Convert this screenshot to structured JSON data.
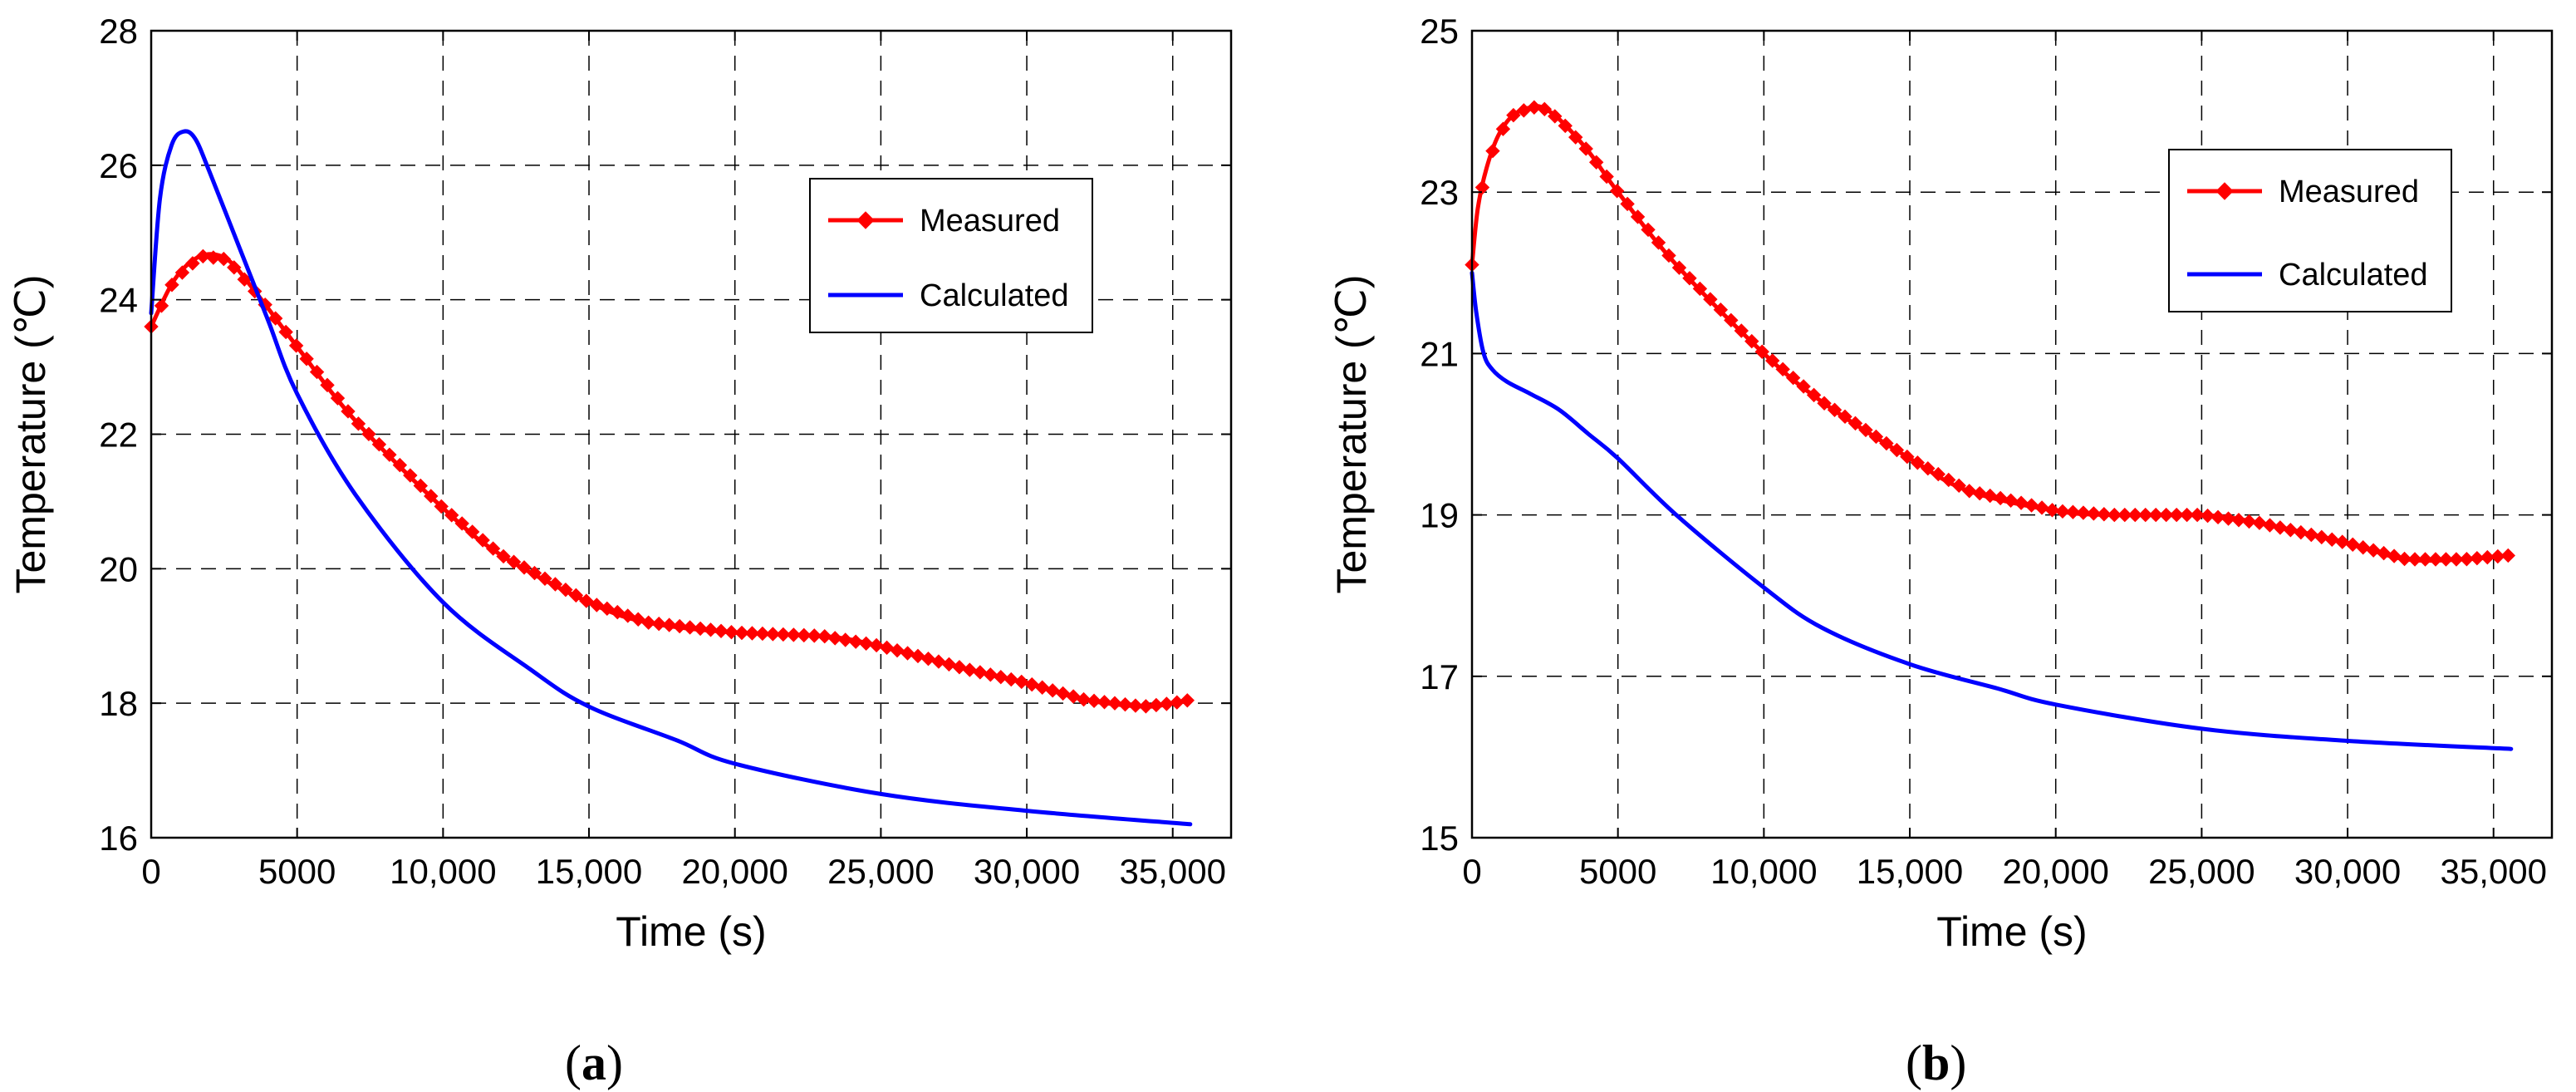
{
  "figure": {
    "captions": [
      {
        "open": "(",
        "letter": "a",
        "close": ")"
      },
      {
        "open": "(",
        "letter": "b",
        "close": ")"
      }
    ]
  },
  "colors": {
    "measured": "#ff0000",
    "calculated": "#0000ff",
    "grid": "#000000",
    "axis": "#000000",
    "background": "#ffffff"
  },
  "chart_data": [
    {
      "id": "a",
      "type": "line",
      "title": "",
      "xlabel": "Time (s)",
      "ylabel": "Temperature (℃)",
      "xlim": [
        0,
        37000
      ],
      "ylim": [
        16,
        28
      ],
      "xticks": [
        0,
        5000,
        10000,
        15000,
        20000,
        25000,
        30000,
        35000
      ],
      "xtick_labels": [
        "0",
        "5000",
        "10,000",
        "15,000",
        "20,000",
        "25,000",
        "30,000",
        "35,000"
      ],
      "yticks": [
        16,
        18,
        20,
        22,
        24,
        26,
        28
      ],
      "ytick_labels": [
        "16",
        "18",
        "20",
        "22",
        "24",
        "26",
        "28"
      ],
      "grid": true,
      "legend_position": "top-right",
      "series": [
        {
          "name": "Measured",
          "color": "#ff0000",
          "marker": "diamond",
          "x": [
            0,
            800,
            1700,
            2600,
            3600,
            5000,
            7000,
            10000,
            12000,
            15000,
            17000,
            20000,
            23000,
            25000,
            28000,
            30000,
            32000,
            34000,
            35000,
            35600
          ],
          "y": [
            23.6,
            24.3,
            24.65,
            24.6,
            24.1,
            23.3,
            22.2,
            20.9,
            20.2,
            19.5,
            19.2,
            19.05,
            19.0,
            18.85,
            18.5,
            18.3,
            18.05,
            17.95,
            18.0,
            18.05
          ]
        },
        {
          "name": "Calculated",
          "color": "#0000ff",
          "marker": "none",
          "x": [
            0,
            300,
            700,
            1100,
            1500,
            2000,
            3000,
            4000,
            5000,
            7000,
            10000,
            13000,
            15000,
            18000,
            20000,
            25000,
            30000,
            35600
          ],
          "y": [
            23.8,
            25.5,
            26.3,
            26.5,
            26.4,
            25.9,
            24.8,
            23.7,
            22.6,
            21.1,
            19.5,
            18.5,
            17.95,
            17.45,
            17.1,
            16.65,
            16.4,
            16.2
          ]
        }
      ]
    },
    {
      "id": "b",
      "type": "line",
      "title": "",
      "xlabel": "Time (s)",
      "ylabel": "Temperature (℃)",
      "xlim": [
        0,
        37000
      ],
      "ylim": [
        15,
        25
      ],
      "xticks": [
        0,
        5000,
        10000,
        15000,
        20000,
        25000,
        30000,
        35000
      ],
      "xtick_labels": [
        "0",
        "5000",
        "10,000",
        "15,000",
        "20,000",
        "25,000",
        "30,000",
        "35,000"
      ],
      "yticks": [
        15,
        17,
        19,
        21,
        23,
        25
      ],
      "ytick_labels": [
        "15",
        "17",
        "19",
        "21",
        "23",
        "25"
      ],
      "grid": true,
      "legend_position": "top-right",
      "series": [
        {
          "name": "Measured",
          "color": "#ff0000",
          "marker": "diamond",
          "x": [
            0,
            200,
            500,
            900,
            1400,
            2000,
            2400,
            3000,
            4000,
            5000,
            7000,
            10000,
            12000,
            15000,
            17000,
            20000,
            22000,
            25000,
            27000,
            30000,
            32000,
            34000,
            35600
          ],
          "y": [
            22.1,
            22.8,
            23.3,
            23.7,
            23.95,
            24.05,
            24.05,
            23.9,
            23.5,
            23.0,
            22.1,
            21.0,
            20.4,
            19.7,
            19.3,
            19.05,
            19.0,
            19.0,
            18.9,
            18.65,
            18.45,
            18.45,
            18.5
          ]
        },
        {
          "name": "Calculated",
          "color": "#0000ff",
          "marker": "none",
          "x": [
            0,
            150,
            400,
            700,
            1200,
            2000,
            3000,
            4000,
            5000,
            7000,
            10000,
            12000,
            15000,
            18000,
            20000,
            25000,
            30000,
            35600
          ],
          "y": [
            22.0,
            21.5,
            21.0,
            20.8,
            20.65,
            20.5,
            20.3,
            20.0,
            19.7,
            19.0,
            18.1,
            17.6,
            17.15,
            16.85,
            16.65,
            16.35,
            16.2,
            16.1
          ]
        }
      ]
    }
  ]
}
